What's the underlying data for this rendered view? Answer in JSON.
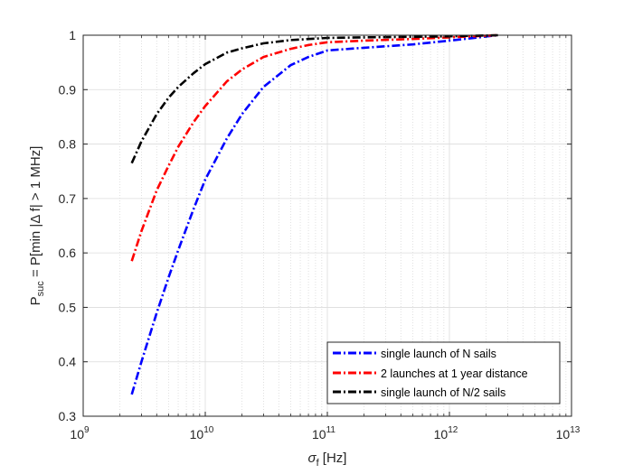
{
  "chart_data": {
    "type": "line",
    "xscale": "log",
    "xlim": [
      1000000000.0,
      10000000000000.0
    ],
    "ylim": [
      0.3,
      1.0
    ],
    "grid": true,
    "legend_position": "bottom-right",
    "xlabel_symbol": "σ",
    "xlabel_sub": "f",
    "xlabel_unit": " [Hz]",
    "ylabel_base": "P",
    "ylabel_sub": "suc",
    "ylabel_rest": " = P[min |Δ f| > 1 MHz]",
    "x_ticks": [
      {
        "base": "10",
        "exp": "9"
      },
      {
        "base": "10",
        "exp": "10"
      },
      {
        "base": "10",
        "exp": "11"
      },
      {
        "base": "10",
        "exp": "12"
      },
      {
        "base": "10",
        "exp": "13"
      }
    ],
    "y_ticks": [
      "0.3",
      "0.4",
      "0.5",
      "0.6",
      "0.7",
      "0.8",
      "0.9",
      "1"
    ],
    "series": [
      {
        "name": "single launch of N sails",
        "color": "#0000ff",
        "x": [
          2500000000.0,
          3000000000.0,
          4000000000.0,
          5000000000.0,
          6000000000.0,
          8000000000.0,
          10000000000.0,
          15000000000.0,
          20000000000.0,
          30000000000.0,
          50000000000.0,
          70000000000.0,
          100000000000.0,
          200000000000.0,
          500000000000.0,
          1000000000000.0,
          2500000000000.0
        ],
        "y": [
          0.34,
          0.4,
          0.49,
          0.555,
          0.605,
          0.68,
          0.735,
          0.81,
          0.855,
          0.905,
          0.945,
          0.96,
          0.972,
          0.977,
          0.983,
          0.99,
          1.0
        ]
      },
      {
        "name": "2 launches at 1 year distance",
        "color": "#ff0000",
        "x": [
          2500000000.0,
          3000000000.0,
          4000000000.0,
          5000000000.0,
          6000000000.0,
          8000000000.0,
          10000000000.0,
          15000000000.0,
          20000000000.0,
          30000000000.0,
          50000000000.0,
          70000000000.0,
          100000000000.0,
          200000000000.0,
          500000000000.0,
          1000000000000.0,
          2500000000000.0
        ],
        "y": [
          0.585,
          0.64,
          0.715,
          0.76,
          0.795,
          0.84,
          0.87,
          0.915,
          0.937,
          0.96,
          0.975,
          0.982,
          0.987,
          0.99,
          0.993,
          0.996,
          1.0
        ]
      },
      {
        "name": "single launch of N/2 sails",
        "color": "#000000",
        "x": [
          2500000000.0,
          3000000000.0,
          4000000000.0,
          5000000000.0,
          6000000000.0,
          8000000000.0,
          10000000000.0,
          15000000000.0,
          20000000000.0,
          30000000000.0,
          50000000000.0,
          70000000000.0,
          100000000000.0,
          200000000000.0,
          500000000000.0,
          1000000000000.0,
          2500000000000.0
        ],
        "y": [
          0.765,
          0.805,
          0.855,
          0.885,
          0.905,
          0.93,
          0.947,
          0.968,
          0.976,
          0.985,
          0.991,
          0.993,
          0.995,
          0.996,
          0.997,
          0.998,
          1.0
        ]
      }
    ]
  }
}
